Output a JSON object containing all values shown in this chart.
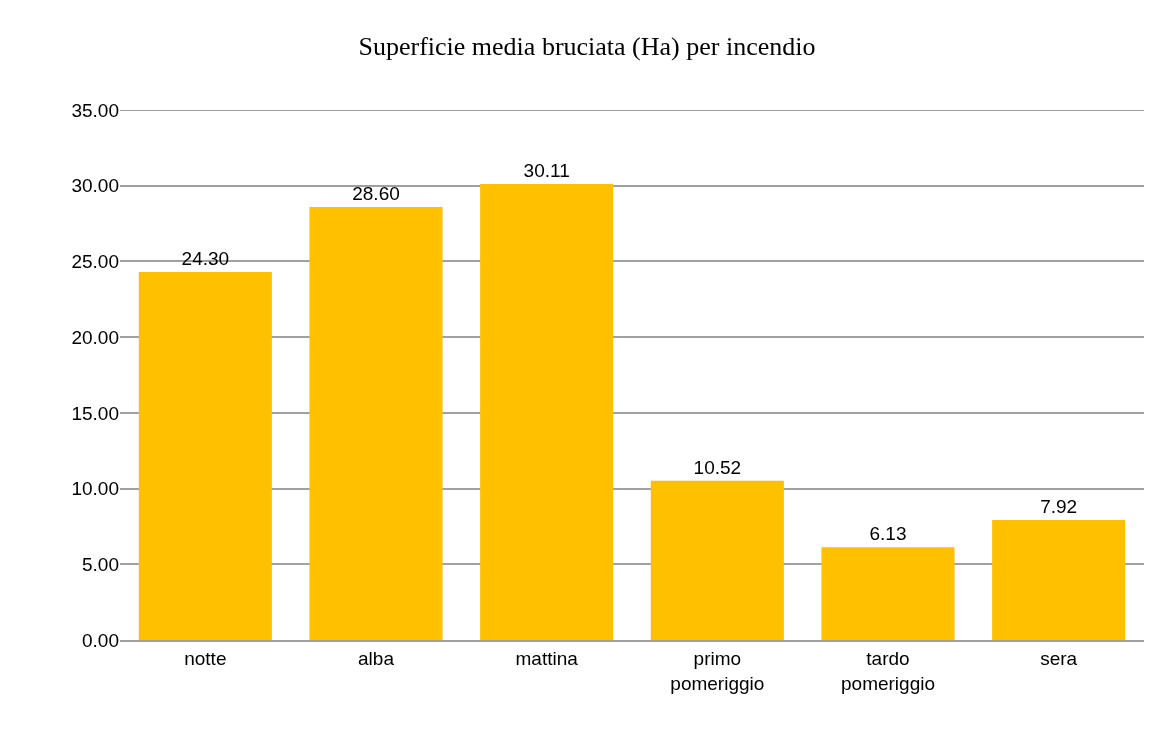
{
  "chart_data": {
    "type": "bar",
    "title": "Superficie media bruciata (Ha) per incendio",
    "categories": [
      "notte",
      "alba",
      "mattina",
      "primo pomeriggio",
      "tardo pomeriggio",
      "sera"
    ],
    "values": [
      24.3,
      28.6,
      30.11,
      10.52,
      6.13,
      7.92
    ],
    "value_labels": [
      "24.30",
      "28.60",
      "30.11",
      "10.52",
      "6.13",
      "7.92"
    ],
    "color": "#ffc000",
    "ylim": [
      0,
      35
    ],
    "yticks": [
      {
        "value": 0,
        "label": "0.00"
      },
      {
        "value": 5,
        "label": "5.00"
      },
      {
        "value": 10,
        "label": "10.00"
      },
      {
        "value": 15,
        "label": "15.00"
      },
      {
        "value": 20,
        "label": "20.00"
      },
      {
        "value": 25,
        "label": "25.00"
      },
      {
        "value": 30,
        "label": "30.00"
      },
      {
        "value": 35,
        "label": "35.00"
      }
    ],
    "grid": "y"
  }
}
